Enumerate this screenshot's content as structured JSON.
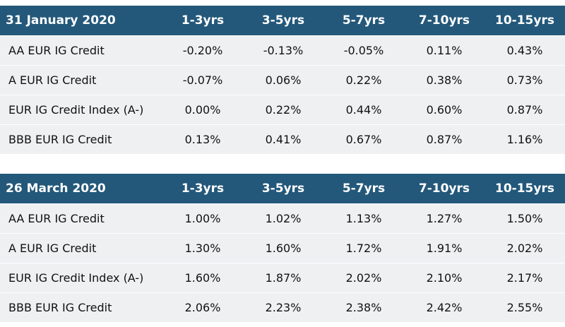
{
  "chart_data": [
    {
      "type": "table",
      "title": "31 January 2020",
      "columns": [
        "1-3yrs",
        "3-5yrs",
        "5-7yrs",
        "7-10yrs",
        "10-15yrs"
      ],
      "rows": [
        {
          "label": "AA EUR IG Credit",
          "values": [
            "-0.20%",
            "-0.13%",
            "-0.05%",
            "0.11%",
            "0.43%"
          ]
        },
        {
          "label": "A EUR IG Credit",
          "values": [
            "-0.07%",
            "0.06%",
            "0.22%",
            "0.38%",
            "0.73%"
          ]
        },
        {
          "label": "EUR IG Credit Index (A-)",
          "values": [
            "0.00%",
            "0.22%",
            "0.44%",
            "0.60%",
            "0.87%"
          ]
        },
        {
          "label": "BBB EUR IG Credit",
          "values": [
            "0.13%",
            "0.41%",
            "0.67%",
            "0.87%",
            "1.16%"
          ]
        }
      ]
    },
    {
      "type": "table",
      "title": "26 March 2020",
      "columns": [
        "1-3yrs",
        "3-5yrs",
        "5-7yrs",
        "7-10yrs",
        "10-15yrs"
      ],
      "rows": [
        {
          "label": "AA EUR IG Credit",
          "values": [
            "1.00%",
            "1.02%",
            "1.13%",
            "1.27%",
            "1.50%"
          ]
        },
        {
          "label": "A EUR IG Credit",
          "values": [
            "1.30%",
            "1.60%",
            "1.72%",
            "1.91%",
            "2.02%"
          ]
        },
        {
          "label": "EUR IG Credit Index (A-)",
          "values": [
            "1.60%",
            "1.87%",
            "2.02%",
            "2.10%",
            "2.17%"
          ]
        },
        {
          "label": "BBB EUR IG Credit",
          "values": [
            "2.06%",
            "2.23%",
            "2.38%",
            "2.42%",
            "2.55%"
          ]
        }
      ]
    }
  ],
  "colors": {
    "header_bg": "#23587a",
    "header_text": "#ffffff",
    "row_bg": "#eef0f2"
  }
}
